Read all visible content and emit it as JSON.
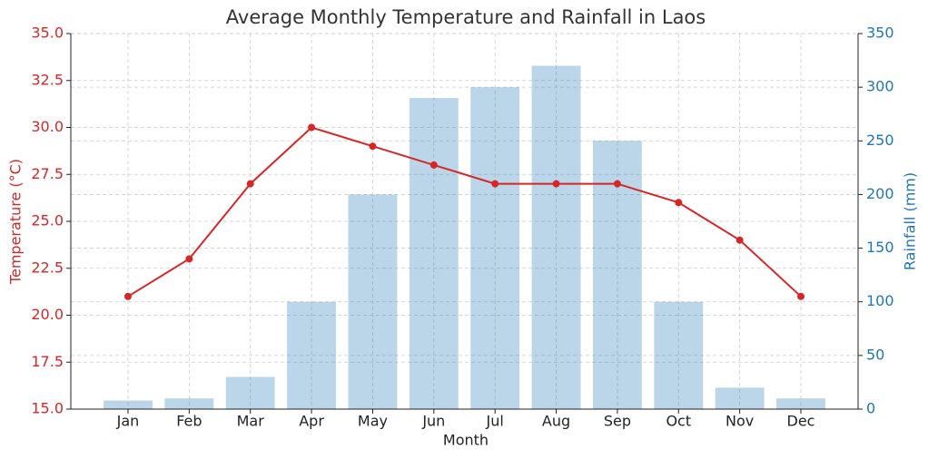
{
  "chart_data": {
    "type": "combo",
    "title": "Average Monthly Temperature and Rainfall in Laos",
    "xlabel": "Month",
    "ylabel": "Temperature (°C)",
    "y2label": "Rainfall (mm)",
    "categories": [
      "Jan",
      "Feb",
      "Mar",
      "Apr",
      "May",
      "Jun",
      "Jul",
      "Aug",
      "Sep",
      "Oct",
      "Nov",
      "Dec"
    ],
    "series": [
      {
        "type": "bar",
        "axis": "y2",
        "color": "#1f77b4",
        "values": [
          8,
          10,
          30,
          100,
          200,
          290,
          300,
          320,
          250,
          100,
          20,
          10
        ]
      },
      {
        "type": "line",
        "color": "#d62728",
        "values": [
          21,
          23,
          27,
          30,
          29,
          28,
          27,
          27,
          27,
          26,
          24,
          21
        ]
      }
    ],
    "ylim": [
      15,
      35
    ],
    "yticks": [
      {
        "value": 15,
        "label": "15.0"
      },
      17.5,
      {
        "value": 20,
        "label": "20.0"
      },
      22.5,
      {
        "value": 25,
        "label": "25.0"
      },
      27.5,
      {
        "value": 30,
        "label": "30.0"
      },
      32.5,
      {
        "value": 35,
        "label": "35.0"
      }
    ],
    "y2lim": [
      0,
      350
    ],
    "y2ticks": [
      0,
      50,
      100,
      150,
      200,
      250,
      300,
      350
    ],
    "grid": true
  }
}
